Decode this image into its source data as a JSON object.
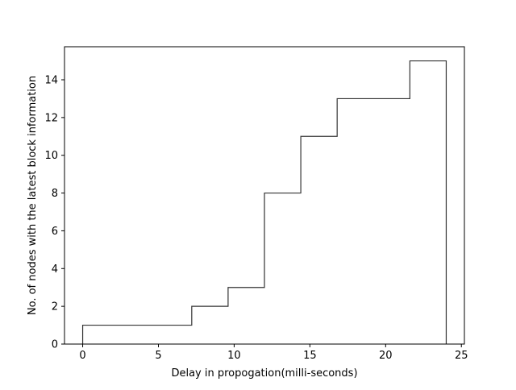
{
  "chart_data": {
    "type": "line",
    "drawstyle": "step-histogram",
    "title": "",
    "xlabel": "Delay in propogation(milli-seconds)",
    "ylabel": "No. of nodes with the latest block information",
    "xlim": [
      -1.2,
      25.2
    ],
    "ylim": [
      0,
      15.75
    ],
    "x_ticks": [
      0,
      5,
      10,
      15,
      20,
      25
    ],
    "y_ticks": [
      0,
      2,
      4,
      6,
      8,
      10,
      12,
      14
    ],
    "grid": false,
    "legend": "none",
    "series": [
      {
        "edges": [
          0,
          7.2,
          9.6,
          12.0,
          14.4,
          16.8,
          21.6,
          24.0
        ],
        "values": [
          1,
          2,
          3,
          8,
          11,
          13,
          15
        ],
        "color": "#333333"
      }
    ]
  }
}
